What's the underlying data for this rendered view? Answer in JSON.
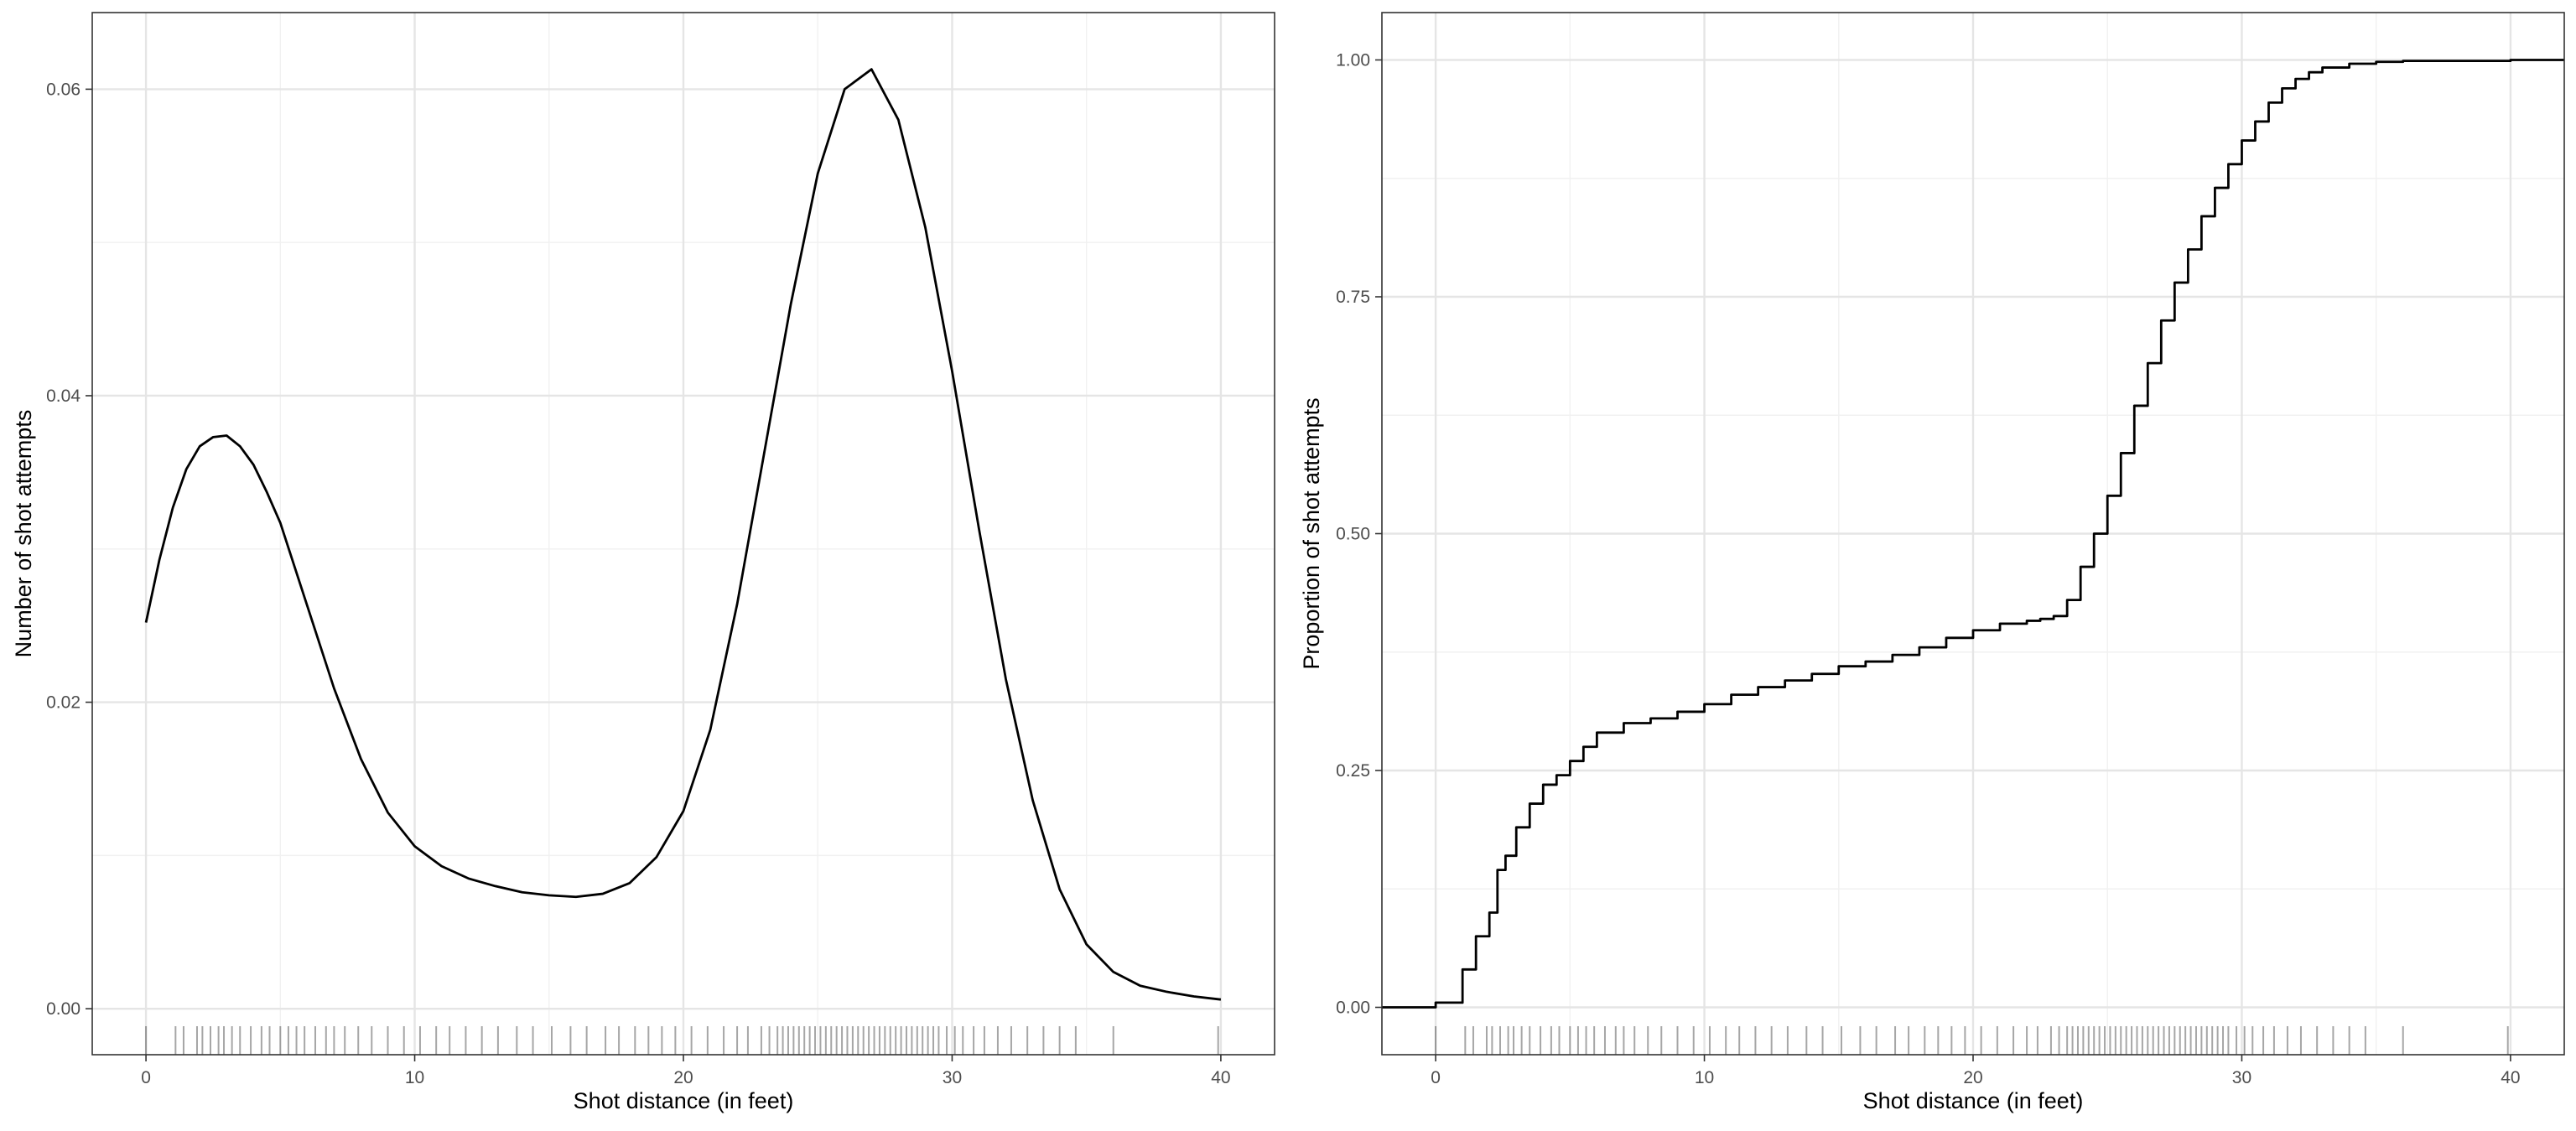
{
  "chart_data": [
    {
      "type": "line",
      "subtype": "density",
      "xlabel": "Shot distance (in feet)",
      "ylabel": "Number of shot attempts",
      "xlim": [
        -2,
        42
      ],
      "ylim": [
        -0.003,
        0.065
      ],
      "x_ticks": [
        0,
        10,
        20,
        30,
        40
      ],
      "x_tick_labels": [
        "0",
        "10",
        "20",
        "30",
        "40"
      ],
      "y_ticks": [
        0,
        0.02,
        0.04,
        0.06
      ],
      "y_tick_labels": [
        "0.00",
        "0.02",
        "0.04",
        "0.06"
      ],
      "grid": true,
      "series": [
        {
          "x": [
            0,
            0.5,
            1,
            1.5,
            2,
            2.5,
            3,
            3.5,
            4,
            4.5,
            5,
            6,
            7,
            8,
            9,
            10,
            11,
            12,
            13,
            14,
            15,
            16,
            17,
            18,
            19,
            20,
            21,
            22,
            23,
            24,
            25,
            26,
            27,
            28,
            29,
            30,
            31,
            32,
            33,
            34,
            35,
            36,
            37,
            38,
            39,
            40
          ],
          "y": [
            0.0252,
            0.0293,
            0.0327,
            0.0352,
            0.0367,
            0.0373,
            0.0374,
            0.0367,
            0.0355,
            0.0337,
            0.0317,
            0.0263,
            0.0209,
            0.0163,
            0.0128,
            0.0106,
            0.0093,
            0.0085,
            0.008,
            0.0076,
            0.0074,
            0.0073,
            0.0075,
            0.0082,
            0.0099,
            0.0129,
            0.0182,
            0.0264,
            0.0362,
            0.046,
            0.0545,
            0.06,
            0.0613,
            0.058,
            0.051,
            0.0416,
            0.0313,
            0.0215,
            0.0136,
            0.0078,
            0.0042,
            0.0024,
            0.0015,
            0.0011,
            0.0008,
            0.0006
          ]
        }
      ]
    },
    {
      "type": "line",
      "subtype": "ecdf",
      "xlabel": "Shot distance (in feet)",
      "ylabel": "Proportion of shot attempts",
      "xlim": [
        -2,
        42
      ],
      "ylim": [
        -0.05,
        1.05
      ],
      "x_ticks": [
        0,
        10,
        20,
        30,
        40
      ],
      "x_tick_labels": [
        "0",
        "10",
        "20",
        "30",
        "40"
      ],
      "y_ticks": [
        0,
        0.25,
        0.5,
        0.75,
        1.0
      ],
      "y_tick_labels": [
        "0.00",
        "0.25",
        "0.50",
        "0.75",
        "1.00"
      ],
      "grid": true,
      "series": [
        {
          "x": [
            -2,
            0,
            1,
            1.5,
            2,
            2.3,
            2.6,
            3,
            3.5,
            4,
            4.5,
            5,
            5.5,
            6,
            7,
            8,
            9,
            10,
            11,
            12,
            13,
            14,
            15,
            16,
            17,
            18,
            19,
            20,
            21,
            22,
            22.5,
            23,
            23.5,
            24,
            24.5,
            25,
            25.5,
            26,
            26.5,
            27,
            27.5,
            28,
            28.5,
            29,
            29.5,
            30,
            30.5,
            31,
            31.5,
            32,
            32.5,
            33,
            34,
            35,
            36,
            40,
            42
          ],
          "y": [
            0,
            0.005,
            0.04,
            0.075,
            0.1,
            0.145,
            0.16,
            0.19,
            0.215,
            0.235,
            0.245,
            0.26,
            0.275,
            0.29,
            0.3,
            0.305,
            0.312,
            0.32,
            0.33,
            0.338,
            0.345,
            0.352,
            0.36,
            0.365,
            0.372,
            0.38,
            0.39,
            0.398,
            0.405,
            0.408,
            0.41,
            0.413,
            0.43,
            0.465,
            0.5,
            0.54,
            0.585,
            0.635,
            0.68,
            0.725,
            0.765,
            0.8,
            0.835,
            0.865,
            0.89,
            0.915,
            0.935,
            0.955,
            0.97,
            0.98,
            0.987,
            0.992,
            0.996,
            0.998,
            0.999,
            1.0,
            1.0
          ]
        }
      ]
    }
  ],
  "rug": {
    "x": [
      0,
      1.1,
      1.4,
      1.9,
      2.1,
      2.4,
      2.7,
      2.9,
      3.2,
      3.5,
      3.9,
      4.3,
      4.6,
      5.0,
      5.3,
      5.6,
      5.9,
      6.3,
      6.7,
      7.0,
      7.4,
      7.9,
      8.4,
      9.0,
      9.6,
      10.2,
      10.8,
      11.3,
      11.9,
      12.5,
      13.1,
      13.8,
      14.4,
      15.1,
      15.8,
      16.4,
      17.1,
      17.6,
      18.2,
      18.7,
      19.2,
      19.7,
      20.3,
      20.9,
      21.5,
      22.0,
      22.4,
      22.9,
      23.2,
      23.5,
      23.7,
      23.9,
      24.1,
      24.3,
      24.5,
      24.7,
      24.9,
      25.1,
      25.3,
      25.5,
      25.7,
      25.9,
      26.1,
      26.3,
      26.5,
      26.7,
      26.9,
      27.1,
      27.3,
      27.5,
      27.7,
      27.9,
      28.1,
      28.3,
      28.5,
      28.7,
      28.9,
      29.1,
      29.3,
      29.5,
      29.8,
      30.1,
      30.4,
      30.8,
      31.2,
      31.7,
      32.2,
      32.8,
      33.4,
      34.0,
      34.6,
      36.0,
      39.9
    ]
  }
}
